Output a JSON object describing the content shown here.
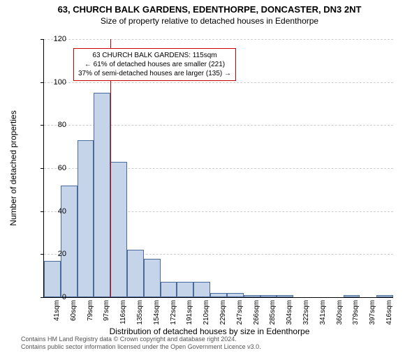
{
  "title_main": "63, CHURCH BALK GARDENS, EDENTHORPE, DONCASTER, DN3 2NT",
  "title_sub": "Size of property relative to detached houses in Edenthorpe",
  "y_axis_label": "Number of detached properties",
  "x_axis_label": "Distribution of detached houses by size in Edenthorpe",
  "chart": {
    "type": "histogram",
    "ylim": [
      0,
      120
    ],
    "ytick_step": 20,
    "yticks": [
      0,
      20,
      40,
      60,
      80,
      100,
      120
    ],
    "background_color": "#ffffff",
    "grid_color": "#cccccc",
    "bar_fill": "#c5d4e8",
    "bar_border": "#4a6a9a",
    "marker_line_color": "#cc0000",
    "categories": [
      "41sqm",
      "60sqm",
      "79sqm",
      "97sqm",
      "116sqm",
      "135sqm",
      "154sqm",
      "172sqm",
      "191sqm",
      "210sqm",
      "229sqm",
      "247sqm",
      "266sqm",
      "285sqm",
      "304sqm",
      "322sqm",
      "341sqm",
      "360sqm",
      "379sqm",
      "397sqm",
      "416sqm"
    ],
    "values": [
      17,
      52,
      73,
      95,
      63,
      22,
      18,
      7,
      7,
      7,
      2,
      2,
      1,
      1,
      1,
      0,
      0,
      0,
      1,
      0,
      1
    ],
    "marker_position_index": 4
  },
  "info_box": {
    "border_color": "#cc0000",
    "line1": "63 CHURCH BALK GARDENS: 115sqm",
    "line2": "← 61% of detached houses are smaller (221)",
    "line3": "37% of semi-detached houses are larger (135) →"
  },
  "footer_line1": "Contains HM Land Registry data © Crown copyright and database right 2024.",
  "footer_line2": "Contains public sector information licensed under the Open Government Licence v3.0."
}
